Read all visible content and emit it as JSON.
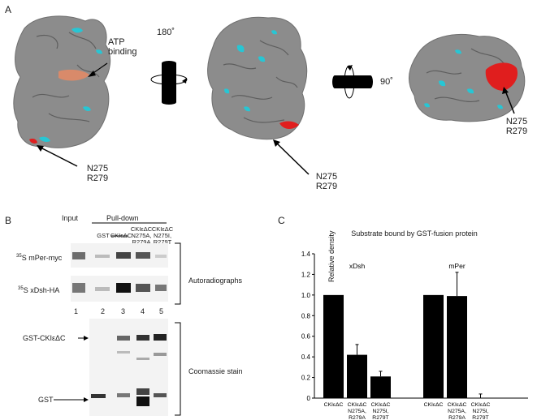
{
  "panel_a": {
    "label": "A",
    "rotation_1": "180˚",
    "rotation_2": "90˚",
    "atp_label": "ATP\nbinding",
    "residue_label_1": "N275\nR279",
    "residue_label_2": "N275\nR279",
    "residue_label_3": "N275\nR279"
  },
  "panel_b": {
    "label": "B",
    "input_header": "Input",
    "pulldown_header": "Pull-down",
    "lane_labels": [
      "GST",
      "CKIεΔC",
      "CKIεΔC\nN275A,\nR279A",
      "CKIεΔC\nN275I,\nR279T"
    ],
    "row_labels": [
      "35S mPer-myc",
      "35S xDsh-HA"
    ],
    "row_label_parts": [
      {
        "sup": "35",
        "text": "S mPer-myc"
      },
      {
        "sup": "35",
        "text": "S xDsh-HA"
      }
    ],
    "lane_numbers": [
      "1",
      "2",
      "3",
      "4",
      "5"
    ],
    "autoradiographs_label": "Autoradiographs",
    "coomassie_label": "Coomassie stain",
    "gst_fusion_label": "GST-CKIεΔC",
    "gst_label": "GST"
  },
  "panel_c": {
    "label": "C"
  },
  "chart_data": {
    "type": "bar",
    "title": "Substrate bound by GST-fusion protein",
    "ylabel": "Relative density",
    "ylim": [
      0,
      1.4
    ],
    "yticks": [
      "0",
      "0.2",
      "0.4",
      "0.6",
      "0.8",
      "1.0",
      "1.2",
      "1.4"
    ],
    "groups": [
      {
        "name": "xDsh",
        "categories": [
          "CKIεΔC",
          "CKIεΔC\nN275A,\nR279A",
          "CKIεΔC\nN275I,\nR279T"
        ],
        "values": [
          1.0,
          0.42,
          0.21
        ],
        "errors": [
          0,
          0.1,
          0.05
        ]
      },
      {
        "name": "mPer",
        "categories": [
          "CKIεΔC",
          "CKIεΔC\nN275A,\nR279A",
          "CKIεΔC\nN275I,\nR279T"
        ],
        "values": [
          1.0,
          0.99,
          0.0
        ],
        "errors": [
          0,
          0.23,
          0.04
        ]
      }
    ],
    "colors": {
      "bar": "#000000"
    }
  },
  "colors": {
    "surface": "#8c8c8c",
    "cyan": "#27c6d4",
    "red": "#e01e1e",
    "orange": "#d98a6a"
  }
}
